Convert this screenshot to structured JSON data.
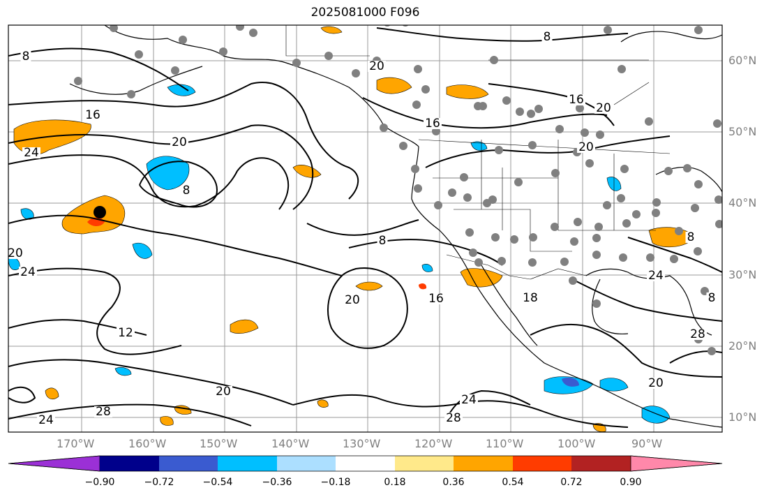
{
  "title": "2025081000 F096",
  "map": {
    "longitude_labels": [
      "170°W",
      "160°W",
      "150°W",
      "140°W",
      "130°W",
      "120°W",
      "110°W",
      "100°W",
      "90°W"
    ],
    "latitude_labels": [
      "60°N",
      "50°N",
      "40°N",
      "30°N",
      "20°N",
      "10°N"
    ],
    "contour_labels": [
      "8",
      "16",
      "24",
      "20",
      "8",
      "20",
      "24",
      "20",
      "12",
      "20",
      "28",
      "24",
      "8",
      "20",
      "16",
      "16",
      "24",
      "28",
      "8",
      "16",
      "20",
      "8",
      "28",
      "24",
      "20",
      "20",
      "8",
      "18"
    ],
    "marker": "storm-center",
    "colors": {
      "continent_outline": "#000000",
      "grid": "#808080",
      "station_dot": "#808080",
      "marker": "#000000"
    }
  },
  "colorbar": {
    "tick_labels": [
      "−0.90",
      "−0.72",
      "−0.54",
      "−0.36",
      "−0.18",
      "0.18",
      "0.36",
      "0.54",
      "0.72",
      "0.90"
    ],
    "colors": [
      "#9b30d6",
      "#00008b",
      "#3a5bd0",
      "#00bfff",
      "#acdfff",
      "#ffffff",
      "#ffe98a",
      "#ffa500",
      "#ff3c00",
      "#b22222",
      "#ff88aa"
    ]
  }
}
